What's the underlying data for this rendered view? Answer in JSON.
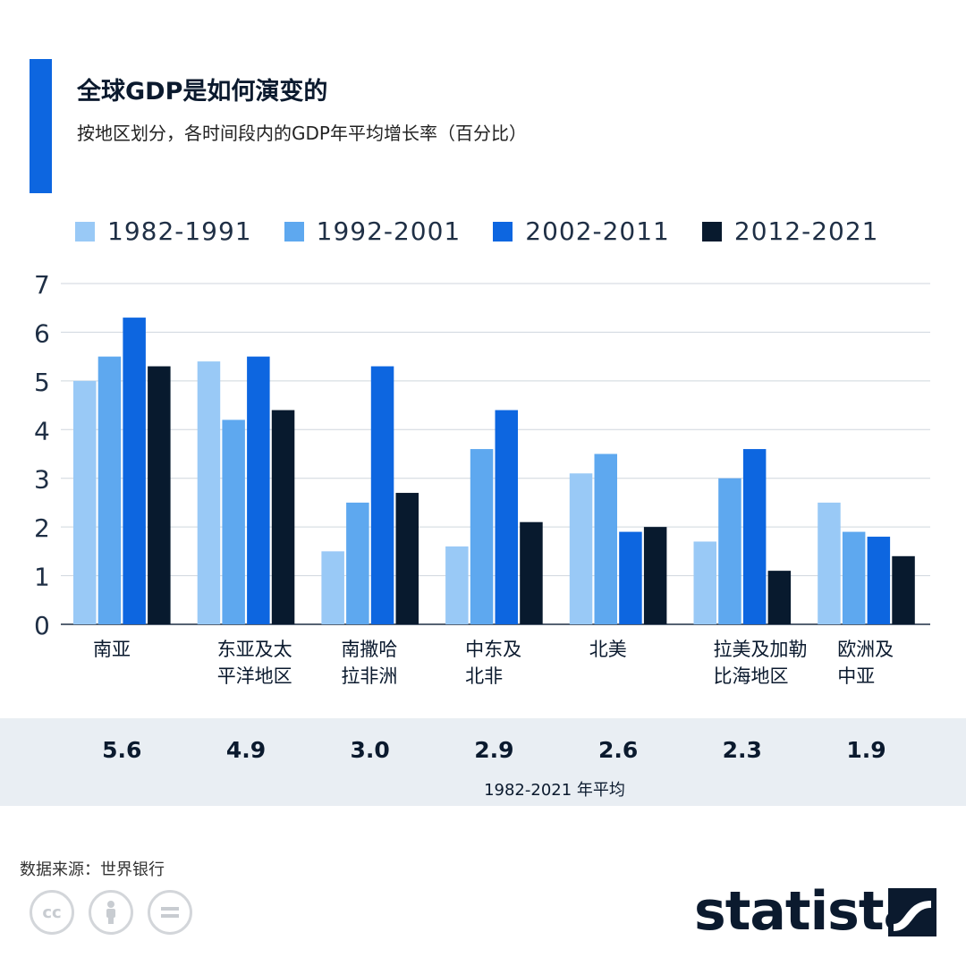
{
  "header": {
    "title": "全球GDP是如何演变的",
    "subtitle": "按地区划分，各时间段内的GDP年平均增长率（百分比）"
  },
  "legend": [
    {
      "label": "1982-1991",
      "color": "#99c9f6"
    },
    {
      "label": "1992-2001",
      "color": "#5ea8ef"
    },
    {
      "label": "2002-2011",
      "color": "#0d66e0"
    },
    {
      "label": "2012-2021",
      "color": "#081a2e"
    }
  ],
  "chart_data": {
    "type": "bar",
    "title": "全球GDP是如何演变的",
    "subtitle": "按地区划分，各时间段内的GDP年平均增长率（百分比）",
    "categories": [
      [
        "南亚"
      ],
      [
        "东亚及太",
        "平洋地区"
      ],
      [
        "南撒哈",
        "拉非洲"
      ],
      [
        "中东及",
        "北非"
      ],
      [
        "北美"
      ],
      [
        "拉美及加勒",
        "比海地区"
      ],
      [
        "欧洲及",
        "中亚"
      ]
    ],
    "series": [
      {
        "name": "1982-1991",
        "color": "#99c9f6",
        "values": [
          5.0,
          5.4,
          1.5,
          1.6,
          3.1,
          1.7,
          2.5
        ]
      },
      {
        "name": "1992-2001",
        "color": "#5ea8ef",
        "values": [
          5.5,
          4.2,
          2.5,
          3.6,
          3.5,
          3.0,
          1.9
        ]
      },
      {
        "name": "2002-2011",
        "color": "#0d66e0",
        "values": [
          6.3,
          5.5,
          5.3,
          4.4,
          1.9,
          3.6,
          1.8
        ]
      },
      {
        "name": "2012-2021",
        "color": "#081a2e",
        "values": [
          5.3,
          4.4,
          2.7,
          2.1,
          2.0,
          1.1,
          1.4
        ]
      }
    ],
    "ylim": [
      0,
      7
    ],
    "yticks": [
      0,
      1,
      2,
      3,
      4,
      5,
      6,
      7
    ],
    "grid": true,
    "legend_position": "top"
  },
  "averages": {
    "values": [
      "5.6",
      "4.9",
      "3.0",
      "2.9",
      "2.6",
      "2.3",
      "1.9"
    ],
    "caption": "1982-2021 年平均"
  },
  "footer": {
    "source": "数据来源：世界银行",
    "brand": "statista",
    "license_icons": [
      "cc-icon",
      "attribution-icon",
      "no-derivatives-icon"
    ]
  }
}
